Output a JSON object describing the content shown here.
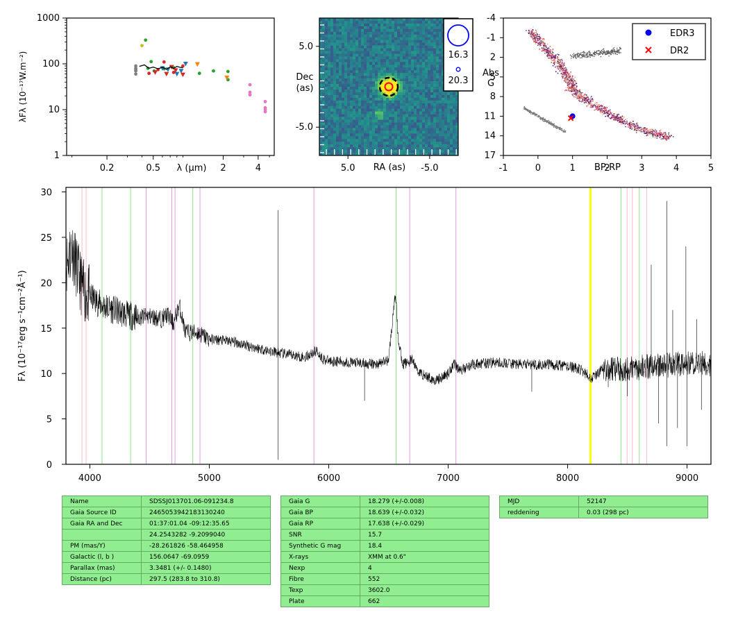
{
  "chart_data": [
    {
      "type": "scatter",
      "title": "",
      "xlabel": "λ (μm)",
      "ylabel": "λFλ (10⁻¹⁷W.m⁻²)",
      "xscale": "log",
      "yscale": "log",
      "xlim": [
        0.09,
        5.5
      ],
      "ylim": [
        1,
        1000
      ],
      "xticks": [
        {
          "v": 0.2,
          "t": "0.2"
        },
        {
          "v": 0.5,
          "t": "0.5"
        },
        {
          "v": 2,
          "t": "2"
        },
        {
          "v": 4,
          "t": "4"
        }
      ],
      "yticks": [
        {
          "v": 1,
          "t": "1"
        },
        {
          "v": 10,
          "t": "10"
        },
        {
          "v": 100,
          "t": "100"
        },
        {
          "v": 1000,
          "t": "1000"
        }
      ],
      "series": [
        {
          "color": "#7f7f7f",
          "marker": "dot",
          "points": [
            [
              0.354,
              60
            ],
            [
              0.354,
              70
            ],
            [
              0.354,
              80
            ],
            [
              0.354,
              90
            ],
            [
              0.354,
              75
            ]
          ]
        },
        {
          "color": "#2ca02c",
          "marker": "dot",
          "points": [
            [
              0.43,
              330
            ],
            [
              0.45,
              80
            ],
            [
              0.51,
              70
            ],
            [
              0.62,
              78
            ],
            [
              0.75,
              82
            ],
            [
              1.25,
              62
            ],
            [
              1.65,
              70
            ],
            [
              2.2,
              68
            ],
            [
              2.2,
              45
            ],
            [
              0.48,
              112
            ]
          ]
        },
        {
          "color": "#bcbd22",
          "marker": "dot",
          "points": [
            [
              0.4,
              250
            ]
          ]
        },
        {
          "color": "#d62728",
          "marker": "dot",
          "points": [
            [
              0.46,
              62
            ],
            [
              0.55,
              75
            ],
            [
              0.62,
              110
            ],
            [
              0.75,
              65
            ],
            [
              0.9,
              90
            ]
          ]
        },
        {
          "color": "#1f77b4",
          "marker": "tri",
          "points": [
            [
              0.6,
              80
            ],
            [
              0.67,
              75
            ],
            [
              0.8,
              60
            ],
            [
              0.87,
              70
            ],
            [
              0.95,
              100
            ]
          ]
        },
        {
          "color": "#d62728",
          "marker": "tri",
          "points": [
            [
              0.52,
              65
            ],
            [
              0.65,
              60
            ],
            [
              0.72,
              85
            ],
            [
              0.78,
              72
            ],
            [
              0.9,
              58
            ]
          ]
        },
        {
          "color": "#ff7f0e",
          "marker": "tri",
          "points": [
            [
              1.2,
              98
            ],
            [
              2.15,
              50
            ]
          ]
        },
        {
          "color": "#e377c2",
          "marker": "dot",
          "points": [
            [
              3.4,
              35
            ],
            [
              3.4,
              24
            ],
            [
              3.4,
              21
            ],
            [
              4.6,
              15
            ],
            [
              4.6,
              11
            ],
            [
              4.6,
              10
            ],
            [
              4.6,
              9
            ]
          ]
        },
        {
          "color": "#000000",
          "marker": "line",
          "points": [
            [
              0.38,
              88
            ],
            [
              0.42,
              95
            ],
            [
              0.46,
              80
            ],
            [
              0.5,
              85
            ],
            [
              0.55,
              78
            ],
            [
              0.6,
              84
            ],
            [
              0.65,
              76
            ],
            [
              0.7,
              86
            ],
            [
              0.75,
              80
            ],
            [
              0.8,
              88
            ],
            [
              0.85,
              84
            ],
            [
              0.9,
              82
            ]
          ]
        }
      ]
    },
    {
      "type": "heatmap",
      "title": "",
      "xlabel": "RA (as)",
      "ylabel": "Dec\n(as)",
      "xlim": [
        8.5,
        -8.5
      ],
      "ylim": [
        -8.5,
        8.5
      ],
      "xticks": [
        {
          "v": 5,
          "t": "5.0"
        },
        {
          "v": -5,
          "t": "-5.0"
        }
      ],
      "yticks": [
        {
          "v": 5,
          "t": "5.0"
        },
        {
          "v": -5,
          "t": "-5.0"
        }
      ],
      "source_center": [
        0.0,
        0.0
      ],
      "legend": [
        {
          "label": "16.3",
          "size": "large"
        },
        {
          "label": "20.3",
          "size": "small"
        }
      ]
    },
    {
      "type": "scatter",
      "title": "",
      "xlabel": "BP-RP",
      "ylabel": "Abs\nG",
      "xlim": [
        -1,
        5
      ],
      "ylim": [
        17,
        -4
      ],
      "xticks": [
        {
          "v": -1,
          "t": "-1"
        },
        {
          "v": 0,
          "t": "0"
        },
        {
          "v": 1,
          "t": "1"
        },
        {
          "v": 2,
          "t": "2"
        },
        {
          "v": 3,
          "t": "3"
        },
        {
          "v": 4,
          "t": "4"
        },
        {
          "v": 5,
          "t": "5"
        }
      ],
      "yticks": [
        {
          "v": -4,
          "t": "-4"
        },
        {
          "v": -1,
          "t": "-1"
        },
        {
          "v": 2,
          "t": "2"
        },
        {
          "v": 5,
          "t": "5"
        },
        {
          "v": 8,
          "t": "8"
        },
        {
          "v": 11,
          "t": "11"
        },
        {
          "v": 14,
          "t": "14"
        },
        {
          "v": 17,
          "t": "17"
        }
      ],
      "series": [
        {
          "name": "EDR3",
          "color": "#0000ff",
          "marker": "circle",
          "points": [
            [
              1.0,
              11.0
            ]
          ]
        },
        {
          "name": "DR2",
          "color": "#ff0000",
          "marker": "x",
          "points": [
            [
              0.95,
              11.3
            ]
          ]
        }
      ],
      "legend_position": "top-right"
    },
    {
      "type": "line",
      "title": "",
      "xlabel": "",
      "ylabel": "Fλ (10⁻¹⁷erg s⁻¹cm⁻²Å⁻¹)",
      "xlim": [
        3800,
        9200
      ],
      "ylim": [
        0,
        30.5
      ],
      "xticks": [
        {
          "v": 4000,
          "t": "4000"
        },
        {
          "v": 5000,
          "t": "5000"
        },
        {
          "v": 6000,
          "t": "6000"
        },
        {
          "v": 7000,
          "t": "7000"
        },
        {
          "v": 8000,
          "t": "8000"
        },
        {
          "v": 9000,
          "t": "9000"
        }
      ],
      "yticks": [
        {
          "v": 0,
          "t": "0"
        },
        {
          "v": 5,
          "t": "5"
        },
        {
          "v": 10,
          "t": "10"
        },
        {
          "v": 15,
          "t": "15"
        },
        {
          "v": 20,
          "t": "20"
        },
        {
          "v": 25,
          "t": "25"
        },
        {
          "v": 30,
          "t": "30"
        }
      ],
      "continuum": [
        [
          3800,
          22
        ],
        [
          3850,
          24
        ],
        [
          3900,
          21
        ],
        [
          3950,
          19
        ],
        [
          4000,
          18.5
        ],
        [
          4100,
          17.5
        ],
        [
          4200,
          17
        ],
        [
          4300,
          16.5
        ],
        [
          4400,
          16.2
        ],
        [
          4500,
          16.3
        ],
        [
          4600,
          16
        ],
        [
          4650,
          16.5
        ],
        [
          4700,
          15.5
        ],
        [
          4750,
          17.5
        ],
        [
          4800,
          14.5
        ],
        [
          4900,
          14.5
        ],
        [
          5000,
          13.8
        ],
        [
          5200,
          13.5
        ],
        [
          5400,
          12.8
        ],
        [
          5600,
          12.2
        ],
        [
          5800,
          11.8
        ],
        [
          5900,
          12.5
        ],
        [
          5950,
          11.6
        ],
        [
          6000,
          11.4
        ],
        [
          6200,
          11.2
        ],
        [
          6400,
          11
        ],
        [
          6500,
          11.5
        ],
        [
          6540,
          16.5
        ],
        [
          6560,
          19
        ],
        [
          6580,
          14
        ],
        [
          6620,
          11
        ],
        [
          6700,
          11.5
        ],
        [
          6750,
          10.2
        ],
        [
          6800,
          9.8
        ],
        [
          6900,
          9.2
        ],
        [
          7000,
          10
        ],
        [
          7050,
          11.2
        ],
        [
          7100,
          10.3
        ],
        [
          7200,
          11
        ],
        [
          7400,
          11.2
        ],
        [
          7600,
          11
        ],
        [
          7800,
          11
        ],
        [
          8000,
          10.8
        ],
        [
          8100,
          10.5
        ],
        [
          8200,
          9.5
        ],
        [
          8300,
          10.5
        ],
        [
          8500,
          10.5
        ],
        [
          8700,
          10.8
        ],
        [
          8900,
          11
        ],
        [
          9100,
          11.2
        ],
        [
          9200,
          11
        ]
      ],
      "spikes": [
        [
          5577,
          0.5
        ],
        [
          5577,
          28
        ],
        [
          6300,
          7
        ],
        [
          7700,
          8
        ],
        [
          8340,
          8.5
        ],
        [
          8500,
          7.5
        ],
        [
          8700,
          22
        ],
        [
          8760,
          4.5
        ],
        [
          8830,
          2
        ],
        [
          8830,
          29
        ],
        [
          8880,
          17
        ],
        [
          8920,
          4
        ],
        [
          8990,
          24
        ],
        [
          9000,
          2
        ],
        [
          9080,
          16
        ],
        [
          9120,
          6
        ]
      ],
      "lines_green": [
        4102,
        4341,
        4862,
        6564,
        8446,
        8600
      ],
      "lines_violet": [
        4471,
        4686,
        4713,
        4922,
        5876,
        6678,
        7065
      ],
      "lines_pink": [
        3934,
        3969,
        8498,
        8542,
        8662
      ],
      "bands_yellow": [
        [
          8183,
          8200
        ]
      ]
    }
  ],
  "tables": [
    {
      "rows": [
        [
          "Name",
          "SDSSJ013701.06-091234.8"
        ],
        [
          "Gaia Source ID",
          "2465053942183130240"
        ],
        [
          "Gaia RA and Dec",
          "01:37:01.04    -09:12:35.65"
        ],
        [
          "",
          "24.2543282    -9.2099040"
        ],
        [
          "PM (mas/Y)",
          "-28.261826    -58.464958"
        ],
        [
          "Galactic (l, b )",
          "156.0647    -69.0959"
        ],
        [
          "Parallax (mas)",
          "3.3481 (+/- 0.1480)"
        ],
        [
          "Distance (pc)",
          "297.5 (283.8 to 310.8)"
        ]
      ]
    },
    {
      "rows": [
        [
          "Gaia G",
          "18.279 (+/-0.008)"
        ],
        [
          "Gaia BP",
          "18.639 (+/-0.032)"
        ],
        [
          "Gaia RP",
          "17.638 (+/-0.029)"
        ],
        [
          "SNR",
          "15.7"
        ],
        [
          "Synthetic G mag",
          "18.4"
        ],
        [
          "X-rays",
          "XMM at 0.6\""
        ],
        [
          "Nexp",
          "4"
        ],
        [
          "Fibre",
          "552"
        ],
        [
          "Texp",
          "3602.0"
        ],
        [
          "Plate",
          "662"
        ]
      ]
    },
    {
      "rows": [
        [
          "MJD",
          "52147"
        ],
        [
          "reddening",
          "0.03 (298 pc)"
        ]
      ]
    }
  ]
}
